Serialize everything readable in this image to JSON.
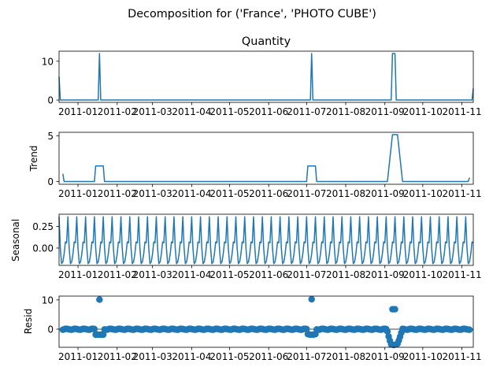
{
  "figure": {
    "suptitle": "Decomposition for ('France', 'PHOTO CUBE')"
  },
  "chart_data": [
    {
      "type": "line",
      "title": "Quantity",
      "ylabel": "",
      "xlim": [
        "2010-12-17",
        "2011-11-10"
      ],
      "ylim": [
        -0.6,
        12.6
      ],
      "yticks": [
        0,
        10
      ],
      "xticks": [
        "2011-01",
        "2011-02",
        "2011-03",
        "2011-04",
        "2011-05",
        "2011-06",
        "2011-07",
        "2011-08",
        "2011-09",
        "2011-10",
        "2011-11"
      ],
      "grid": false,
      "series": [
        {
          "color": "#1f77b4",
          "points": [
            [
              "2010-12-17",
              6
            ],
            [
              "2010-12-18",
              0
            ],
            [
              "2011-01-17",
              0
            ],
            [
              "2011-01-18",
              12
            ],
            [
              "2011-01-19",
              0
            ],
            [
              "2011-07-04",
              0
            ],
            [
              "2011-07-05",
              12
            ],
            [
              "2011-07-06",
              0
            ],
            [
              "2011-09-06",
              0
            ],
            [
              "2011-09-07",
              12
            ],
            [
              "2011-09-09",
              12
            ],
            [
              "2011-09-10",
              0
            ],
            [
              "2011-11-09",
              0
            ],
            [
              "2011-11-10",
              3
            ]
          ]
        }
      ]
    },
    {
      "type": "line",
      "title": "",
      "ylabel": "Trend",
      "xlim": [
        "2010-12-17",
        "2011-11-10"
      ],
      "ylim": [
        -0.3,
        5.4
      ],
      "yticks": [
        0,
        5
      ],
      "xticks": [
        "2011-01",
        "2011-02",
        "2011-03",
        "2011-04",
        "2011-05",
        "2011-06",
        "2011-07",
        "2011-08",
        "2011-09",
        "2011-10",
        "2011-11"
      ],
      "grid": false,
      "series": [
        {
          "color": "#1f77b4",
          "points": [
            [
              "2010-12-20",
              0.86
            ],
            [
              "2010-12-21",
              0
            ],
            [
              "2011-01-14",
              0
            ],
            [
              "2011-01-15",
              1.71
            ],
            [
              "2011-01-21",
              1.71
            ],
            [
              "2011-01-22",
              0
            ],
            [
              "2011-07-01",
              0
            ],
            [
              "2011-07-02",
              1.71
            ],
            [
              "2011-07-08",
              1.71
            ],
            [
              "2011-07-09",
              0
            ],
            [
              "2011-09-03",
              0
            ],
            [
              "2011-09-07",
              5.14
            ],
            [
              "2011-09-11",
              5.14
            ],
            [
              "2011-09-15",
              0
            ],
            [
              "2011-11-06",
              0
            ],
            [
              "2011-11-07",
              0.43
            ]
          ]
        }
      ]
    },
    {
      "type": "line",
      "title": "",
      "ylabel": "Seasonal",
      "xlim": [
        "2010-12-17",
        "2011-11-10"
      ],
      "ylim": [
        -0.2,
        0.39
      ],
      "yticks": [
        0.25,
        0.0
      ],
      "ytick_format": "fixed2",
      "xticks": [
        "2011-01",
        "2011-02",
        "2011-03",
        "2011-04",
        "2011-05",
        "2011-06",
        "2011-07",
        "2011-08",
        "2011-09",
        "2011-10",
        "2011-11"
      ],
      "grid": false,
      "period_days": 7,
      "start": "2010-12-17",
      "end": "2011-11-10",
      "pattern": [
        0.36,
        0.0,
        -0.18,
        -0.16,
        -0.07,
        0.07,
        0.06
      ],
      "series": [
        {
          "color": "#1f77b4"
        }
      ]
    },
    {
      "type": "scatter",
      "title": "",
      "ylabel": "Resid",
      "xlim": [
        "2010-12-17",
        "2011-11-10"
      ],
      "ylim": [
        -6.2,
        11.3
      ],
      "yticks": [
        0,
        10
      ],
      "xticks": [
        "2011-01",
        "2011-02",
        "2011-03",
        "2011-04",
        "2011-05",
        "2011-06",
        "2011-07",
        "2011-08",
        "2011-09",
        "2011-10",
        "2011-11"
      ],
      "grid": false,
      "zero_line": true,
      "start": "2010-12-20",
      "end": "2011-11-07",
      "baseline_pattern": [
        -0.2,
        -0.05,
        0.12,
        0.1,
        0.05,
        -0.1,
        -0.15
      ],
      "overrides": [
        [
          "2011-01-15",
          -1.9
        ],
        [
          "2011-01-16",
          -1.8
        ],
        [
          "2011-01-17",
          -1.9
        ],
        [
          "2011-01-18",
          10.1
        ],
        [
          "2011-01-19",
          -1.9
        ],
        [
          "2011-01-20",
          -1.8
        ],
        [
          "2011-01-21",
          -1.9
        ],
        [
          "2011-07-02",
          -1.7
        ],
        [
          "2011-07-03",
          -1.8
        ],
        [
          "2011-07-04",
          -1.9
        ],
        [
          "2011-07-05",
          10.2
        ],
        [
          "2011-07-06",
          -1.9
        ],
        [
          "2011-07-07",
          -1.8
        ],
        [
          "2011-07-08",
          -1.7
        ],
        [
          "2011-09-03",
          -0.8
        ],
        [
          "2011-09-04",
          -2.5
        ],
        [
          "2011-09-05",
          -4.0
        ],
        [
          "2011-09-06",
          -5.2
        ],
        [
          "2011-09-07",
          6.8
        ],
        [
          "2011-09-08",
          -5.4
        ],
        [
          "2011-09-09",
          6.8
        ],
        [
          "2011-09-10",
          -5.2
        ],
        [
          "2011-09-11",
          -5.0
        ],
        [
          "2011-09-12",
          -3.9
        ],
        [
          "2011-09-13",
          -2.6
        ],
        [
          "2011-09-14",
          -1.2
        ]
      ],
      "series": [
        {
          "color": "#1f77b4"
        }
      ]
    }
  ]
}
